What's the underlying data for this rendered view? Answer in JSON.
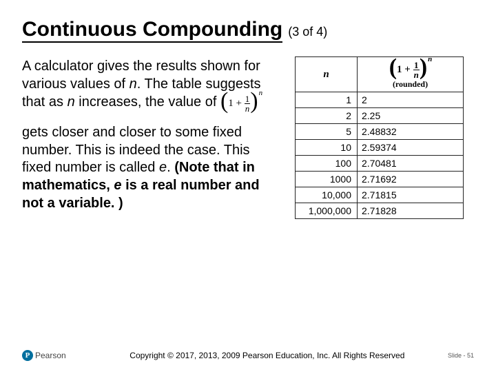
{
  "title": "Continuous Compounding",
  "subtitle": "(3 of 4)",
  "body": {
    "para1_a": "A calculator gives the results shown for various values of ",
    "para1_n": "n",
    "para1_b": ". The table suggests that as ",
    "para1_n2": "n",
    "para1_c": " increases, the value of ",
    "para2_a": "gets closer and closer to some fixed number. This is indeed the case. This fixed number is called ",
    "para2_e": "e",
    "para2_b": ". ",
    "para2_bold_a": "(Note that in mathematics, ",
    "para2_bold_e": "e",
    "para2_bold_b": " is a real number and not a variable. )"
  },
  "formula": {
    "open": "(",
    "one": "1",
    "plus": "+",
    "frac_num": "1",
    "frac_den": "n",
    "close": ")",
    "exp": "n"
  },
  "table": {
    "header_n": "n",
    "header_rounded": "(rounded)",
    "rows": [
      {
        "n": "1",
        "v": "2"
      },
      {
        "n": "2",
        "v": "2.25"
      },
      {
        "n": "5",
        "v": "2.48832"
      },
      {
        "n": "10",
        "v": "2.59374"
      },
      {
        "n": "100",
        "v": "2.70481"
      },
      {
        "n": "1000",
        "v": "2.71692"
      },
      {
        "n": "10,000",
        "v": "2.71815"
      },
      {
        "n": "1,000,000",
        "v": "2.71828"
      }
    ]
  },
  "footer": {
    "logo_letter": "P",
    "logo_text": "Pearson",
    "copyright": "Copyright © 2017, 2013, 2009 Pearson Education, Inc. All Rights Reserved",
    "slide": "Slide - 51"
  },
  "colors": {
    "brand": "#006f9e",
    "text": "#000000",
    "border": "#222222"
  }
}
